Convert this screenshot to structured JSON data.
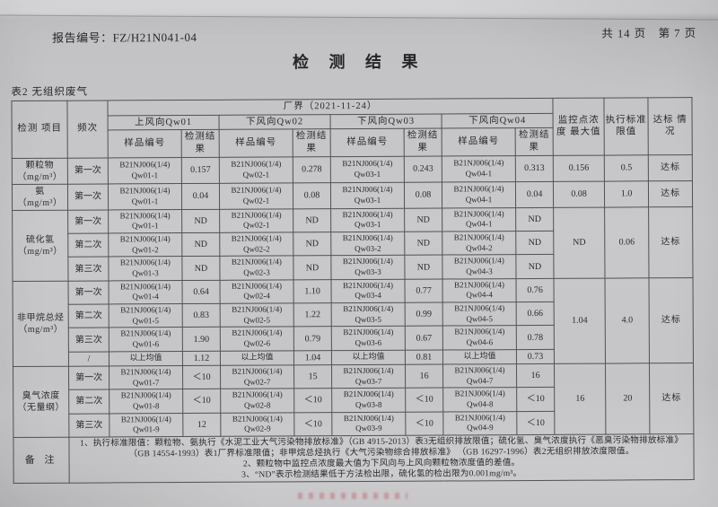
{
  "page": {
    "report_no": "报告编号：FZ/H21N041-04",
    "page_info": "共 14 页　第 7 页",
    "title": "检 测 结 果",
    "table_caption": "表2  无组织废气"
  },
  "table": {
    "header": {
      "item": "检测\n项目",
      "freq": "频次",
      "boundary": "厂界（2021-11-24）",
      "wind": [
        "上风向Qw01",
        "下风向Qw02",
        "下风向Qw03",
        "下风向Qw04"
      ],
      "sample": "样品编号",
      "result": "检测结果",
      "max_conc": "监控点浓度\n最大值",
      "limit": "执行标准\n限值",
      "status": "达标\n情况"
    },
    "groups": [
      {
        "item": "颗粒物\n（mg/m³）",
        "max": "0.156",
        "limit": "0.5",
        "status": "达标",
        "rows": [
          {
            "freq": "第一次",
            "cols": [
              "B21NJ006(1/4)\nQw01-1",
              "0.157",
              "B21NJ006(1/4)\nQw02-1",
              "0.278",
              "B21NJ006(1/4)\nQw03-1",
              "0.243",
              "B21NJ006(1/4)\nQw04-1",
              "0.313"
            ]
          }
        ]
      },
      {
        "item": "氨\n（mg/m³）",
        "max": "0.08",
        "limit": "1.0",
        "status": "达标",
        "rows": [
          {
            "freq": "第一次",
            "cols": [
              "B21NJ006(1/4)\nQw01-1",
              "0.04",
              "B21NJ006(1/4)\nQw02-1",
              "0.08",
              "B21NJ006(1/4)\nQw03-1",
              "0.08",
              "B21NJ006(1/4)\nQw04-1",
              "0.04"
            ]
          }
        ]
      },
      {
        "item": "硫化氢\n（mg/m³）",
        "max": "ND",
        "limit": "0.06",
        "status": "达标",
        "rows": [
          {
            "freq": "第一次",
            "cols": [
              "B21NJ006(1/4)\nQw01-1",
              "ND",
              "B21NJ006(1/4)\nQw02-1",
              "ND",
              "B21NJ006(1/4)\nQw03-1",
              "ND",
              "B21NJ006(1/4)\nQw04-1",
              "ND"
            ]
          },
          {
            "freq": "第二次",
            "cols": [
              "B21NJ006(1/4)\nQw01-2",
              "ND",
              "B21NJ006(1/4)\nQw02-2",
              "ND",
              "B21NJ006(1/4)\nQw03-2",
              "ND",
              "B21NJ006(1/4)\nQw04-2",
              "ND"
            ]
          },
          {
            "freq": "第三次",
            "cols": [
              "B21NJ006(1/4)\nQw01-3",
              "ND",
              "B21NJ006(1/4)\nQw02-3",
              "ND",
              "B21NJ006(1/4)\nQw03-3",
              "ND",
              "B21NJ006(1/4)\nQw04-3",
              "ND"
            ]
          }
        ]
      },
      {
        "item": "非甲烷总烃\n（mg/m³）",
        "max": "1.04",
        "limit": "4.0",
        "status": "达标",
        "rows": [
          {
            "freq": "第一次",
            "cols": [
              "B21NJ006(1/4)\nQw01-4",
              "0.64",
              "B21NJ006(1/4)\nQw02-4",
              "1.10",
              "B21NJ006(1/4)\nQw03-4",
              "0.77",
              "B21NJ006(1/4)\nQw04-4",
              "0.76"
            ]
          },
          {
            "freq": "第二次",
            "cols": [
              "B21NJ006(1/4)\nQw01-5",
              "0.83",
              "B21NJ006(1/4)\nQw02-5",
              "1.22",
              "B21NJ006(1/4)\nQw03-5",
              "0.99",
              "B21NJ006(1/4)\nQw04-5",
              "0.66"
            ]
          },
          {
            "freq": "第三次",
            "cols": [
              "B21NJ006(1/4)\nQw01-6",
              "1.90",
              "B21NJ006(1/4)\nQw02-6",
              "0.79",
              "B21NJ006(1/4)\nQw03-6",
              "0.67",
              "B21NJ006(1/4)\nQw04-6",
              "0.78"
            ]
          },
          {
            "freq": "/",
            "cols": [
              "以上均值",
              "1.12",
              "以上均值",
              "1.04",
              "以上均值",
              "0.81",
              "以上均值",
              "0.73"
            ]
          }
        ]
      },
      {
        "item": "臭气浓度\n（无量纲）",
        "max": "16",
        "limit": "20",
        "status": "达标",
        "rows": [
          {
            "freq": "第一次",
            "cols": [
              "B21NJ006(1/4)\nQw01-7",
              "＜10",
              "B21NJ006(1/4)\nQw02-7",
              "15",
              "B21NJ006(1/4)\nQw03-7",
              "16",
              "B21NJ006(1/4)\nQw04-7",
              "16"
            ]
          },
          {
            "freq": "第二次",
            "cols": [
              "B21NJ006(1/4)\nQw01-8",
              "＜10",
              "B21NJ006(1/4)\nQw02-8",
              "＜10",
              "B21NJ006(1/4)\nQw03-8",
              "＜10",
              "B21NJ006(1/4)\nQw04-8",
              "＜10"
            ]
          },
          {
            "freq": "第三次",
            "cols": [
              "B21NJ006(1/4)\nQw01-9",
              "12",
              "B21NJ006(1/4)\nQw02-9",
              "＜10",
              "B21NJ006(1/4)\nQw03-9",
              "＜10",
              "B21NJ006(1/4)\nQw04-9",
              "＜10"
            ]
          }
        ]
      }
    ],
    "remark_label": "备  注",
    "remarks": [
      "1、执行标准限值：颗粒物、氨执行《水泥工业大气污染物排放标准》（GB 4915-2013）表3无组织排放限值；硫化氢、臭气浓度执行《恶臭污染物排放标准》",
      "（GB 14554-1993）表1厂界标准限值；非甲烷总烃执行《大气污染物综合排放标准》 （GB 16297-1996）表2无组织排放浓度限值。",
      "2、颗粒物中监控点浓度最大值为下风向与上风向颗粒物浓度值的差值。",
      "3、“ND”表示检测结果低于方法检出限，硫化氢的检出限为0.001mg/m³。"
    ]
  }
}
